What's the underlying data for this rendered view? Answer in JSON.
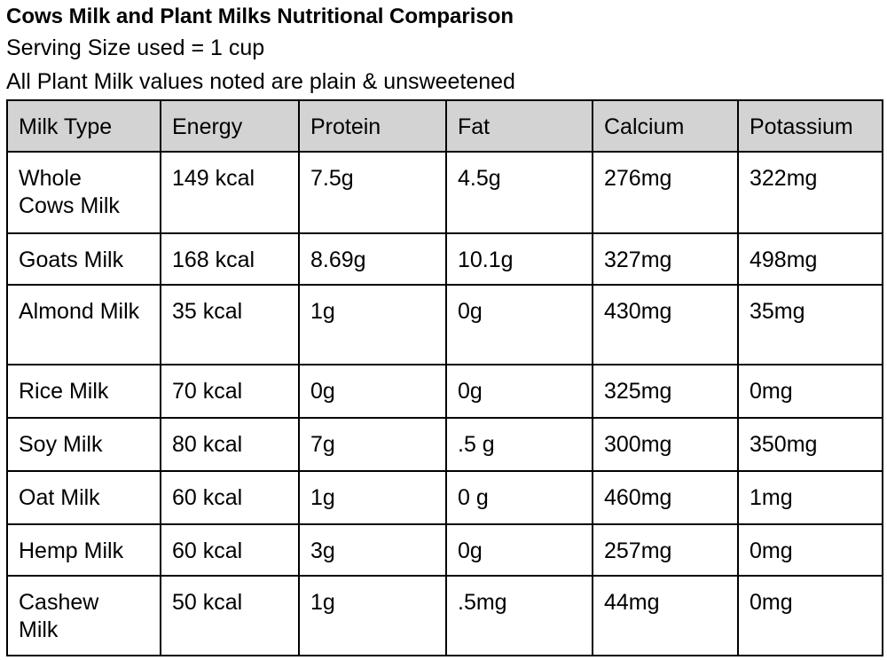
{
  "header": {
    "title": "Cows Milk and Plant Milks Nutritional Comparison",
    "lines": [
      "Serving Size used = 1 cup",
      "All Plant Milk values noted are plain & unsweetened"
    ]
  },
  "table": {
    "headers": [
      "Milk Type",
      "Energy",
      "Protein",
      "Fat",
      "Calcium",
      "Potassium"
    ],
    "rows": [
      [
        "Whole Cows Milk",
        "149 kcal",
        "7.5g",
        "4.5g",
        "276mg",
        "322mg"
      ],
      [
        "Goats Milk",
        "168 kcal",
        "8.69g",
        "10.1g",
        "327mg",
        "498mg"
      ],
      [
        "Almond Milk",
        "35 kcal",
        "1g",
        "0g",
        "430mg",
        "35mg"
      ],
      [
        "Rice Milk",
        "70 kcal",
        "0g",
        "0g",
        "325mg",
        "0mg"
      ],
      [
        "Soy Milk",
        "80 kcal",
        "7g",
        ".5 g",
        "300mg",
        "350mg"
      ],
      [
        "Oat Milk",
        "60 kcal",
        "1g",
        "0 g",
        "460mg",
        "1mg"
      ],
      [
        "Hemp Milk",
        "60 kcal",
        "3g",
        "0g",
        "257mg",
        "0mg"
      ],
      [
        "Cashew Milk",
        "50 kcal",
        "1g",
        ".5mg",
        "44mg",
        "0mg"
      ]
    ]
  }
}
